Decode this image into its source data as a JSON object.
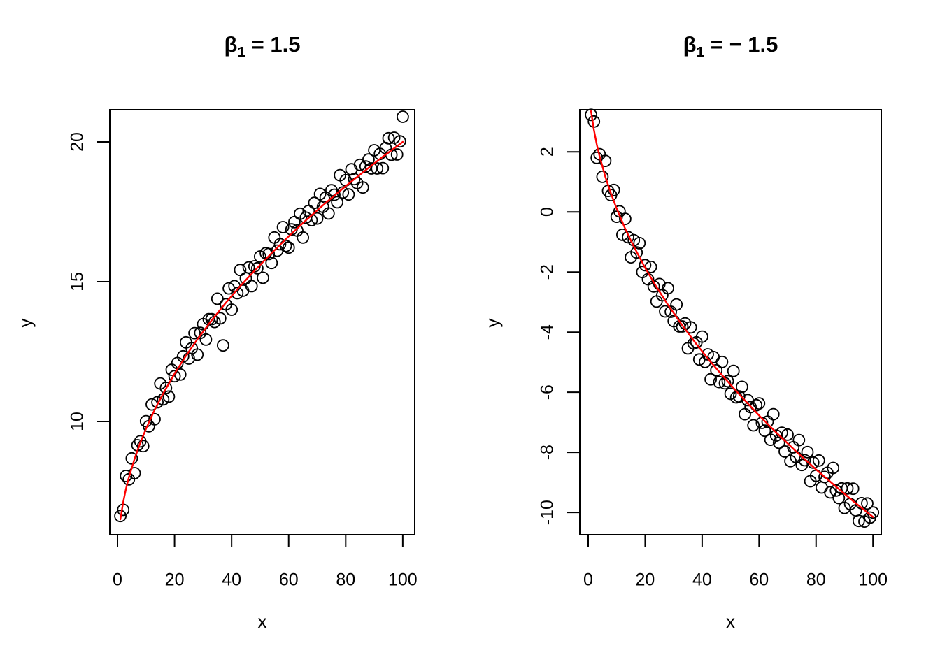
{
  "page": {
    "background": "#ffffff"
  },
  "chart_data": [
    {
      "type": "scatter",
      "title": {
        "symbol": "β",
        "subscript": "1",
        "rest": "= 1.5"
      },
      "xlabel": "x",
      "ylabel": "y",
      "grid": false,
      "legend": "none",
      "xlim": [
        -2.7,
        104.2
      ],
      "ylim": [
        5.95,
        21.15
      ],
      "x_ticks": [
        {
          "v": 0,
          "label": "0"
        },
        {
          "v": 20,
          "label": "20"
        },
        {
          "v": 40,
          "label": "40"
        },
        {
          "v": 60,
          "label": "60"
        },
        {
          "v": 80,
          "label": "80"
        },
        {
          "v": 100,
          "label": "100"
        }
      ],
      "y_ticks": [
        {
          "v": 10,
          "label": "10"
        },
        {
          "v": 15,
          "label": "15"
        },
        {
          "v": 20,
          "label": "20"
        }
      ],
      "point_style": {
        "shape": "open-circle",
        "stroke": "#000000"
      },
      "points": {
        "x": [
          1,
          2,
          3,
          4,
          5,
          6,
          7,
          8,
          9,
          10,
          11,
          12,
          13,
          14,
          15,
          16,
          17,
          18,
          19,
          20,
          21,
          22,
          23,
          24,
          25,
          26,
          27,
          28,
          29,
          30,
          31,
          32,
          33,
          34,
          35,
          36,
          37,
          38,
          39,
          40,
          41,
          42,
          43,
          44,
          45,
          46,
          47,
          48,
          49,
          50,
          51,
          52,
          53,
          54,
          55,
          56,
          57,
          58,
          59,
          60,
          61,
          62,
          63,
          64,
          65,
          66,
          67,
          68,
          69,
          70,
          71,
          72,
          73,
          74,
          75,
          76,
          77,
          78,
          79,
          80,
          81,
          82,
          83,
          84,
          85,
          86,
          87,
          88,
          89,
          90,
          91,
          92,
          93,
          94,
          95,
          96,
          97,
          98,
          99,
          100
        ],
        "y": [
          6.62,
          6.84,
          8.05,
          7.93,
          8.68,
          8.15,
          9.15,
          9.29,
          9.12,
          10.01,
          9.83,
          10.61,
          10.08,
          10.69,
          11.36,
          10.79,
          11.2,
          10.89,
          11.85,
          11.62,
          12.09,
          11.68,
          12.33,
          12.83,
          12.25,
          12.62,
          13.16,
          12.39,
          13.17,
          13.48,
          12.93,
          13.66,
          13.66,
          13.56,
          14.39,
          13.69,
          12.72,
          14.19,
          14.76,
          14.0,
          14.84,
          14.59,
          15.42,
          14.68,
          15.12,
          15.51,
          14.84,
          15.55,
          15.48,
          15.9,
          15.14,
          16.02,
          15.99,
          15.67,
          16.58,
          16.11,
          16.34,
          16.95,
          16.28,
          16.22,
          16.87,
          17.13,
          16.83,
          17.43,
          16.58,
          17.29,
          17.53,
          17.2,
          17.82,
          17.26,
          18.14,
          17.68,
          18.01,
          17.44,
          18.27,
          18.11,
          17.84,
          18.81,
          18.19,
          18.63,
          18.12,
          19.02,
          18.67,
          18.53,
          19.18,
          18.37,
          19.12,
          19.37,
          19.05,
          19.7,
          19.05,
          19.57,
          19.06,
          19.78,
          20.13,
          19.54,
          20.15,
          19.55,
          20.02,
          20.9
        ]
      },
      "fit_line": {
        "color": "#ff0000",
        "points": [
          [
            1,
            6.5
          ],
          [
            2,
            7.12
          ],
          [
            3,
            7.6
          ],
          [
            4,
            8.0
          ],
          [
            6,
            8.67
          ],
          [
            8,
            9.24
          ],
          [
            10,
            9.74
          ],
          [
            13,
            10.41
          ],
          [
            16,
            11.0
          ],
          [
            20,
            11.71
          ],
          [
            24,
            12.35
          ],
          [
            28,
            12.94
          ],
          [
            33,
            13.62
          ],
          [
            38,
            14.25
          ],
          [
            43,
            14.84
          ],
          [
            48,
            15.39
          ],
          [
            54,
            16.02
          ],
          [
            60,
            16.62
          ],
          [
            66,
            17.19
          ],
          [
            73,
            17.82
          ],
          [
            80,
            18.42
          ],
          [
            87,
            18.99
          ],
          [
            93,
            19.47
          ],
          [
            100,
            20.0
          ]
        ]
      }
    },
    {
      "type": "scatter",
      "title": {
        "symbol": "β",
        "subscript": "1",
        "rest": "= − 1.5"
      },
      "xlabel": "x",
      "ylabel": "y",
      "grid": false,
      "legend": "none",
      "xlim": [
        -2.95,
        102.9
      ],
      "ylim": [
        -10.74,
        3.4
      ],
      "x_ticks": [
        {
          "v": 0,
          "label": "0"
        },
        {
          "v": 20,
          "label": "20"
        },
        {
          "v": 40,
          "label": "40"
        },
        {
          "v": 60,
          "label": "60"
        },
        {
          "v": 80,
          "label": "80"
        },
        {
          "v": 100,
          "label": "100"
        }
      ],
      "y_ticks": [
        {
          "v": 2,
          "label": "2"
        },
        {
          "v": 0,
          "label": "0"
        },
        {
          "v": -2,
          "label": "-2"
        },
        {
          "v": -4,
          "label": "-4"
        },
        {
          "v": -6,
          "label": "-6"
        },
        {
          "v": -8,
          "label": "-8"
        },
        {
          "v": -10,
          "label": "-10"
        }
      ],
      "point_style": {
        "shape": "open-circle",
        "stroke": "#000000"
      },
      "points": {
        "x": [
          1,
          2,
          3,
          4,
          5,
          6,
          7,
          8,
          9,
          10,
          11,
          12,
          13,
          14,
          15,
          16,
          17,
          18,
          19,
          20,
          21,
          22,
          23,
          24,
          25,
          26,
          27,
          28,
          29,
          30,
          31,
          32,
          33,
          34,
          35,
          36,
          37,
          38,
          39,
          40,
          41,
          42,
          43,
          44,
          45,
          46,
          47,
          48,
          49,
          50,
          51,
          52,
          53,
          54,
          55,
          56,
          57,
          58,
          59,
          60,
          61,
          62,
          63,
          64,
          65,
          66,
          67,
          68,
          69,
          70,
          71,
          72,
          73,
          74,
          75,
          76,
          77,
          78,
          79,
          80,
          81,
          82,
          83,
          84,
          85,
          86,
          87,
          88,
          89,
          90,
          91,
          92,
          93,
          94,
          95,
          96,
          97,
          98,
          99,
          100
        ],
        "y": [
          3.23,
          3.01,
          1.8,
          1.92,
          1.17,
          1.7,
          0.7,
          0.56,
          0.73,
          -0.16,
          0.02,
          -0.76,
          -0.23,
          -0.84,
          -1.51,
          -0.94,
          -1.35,
          -1.04,
          -2.0,
          -1.77,
          -2.24,
          -1.83,
          -2.48,
          -2.98,
          -2.4,
          -2.77,
          -3.31,
          -2.54,
          -3.32,
          -3.63,
          -3.08,
          -3.81,
          -3.81,
          -3.71,
          -4.54,
          -3.84,
          -4.38,
          -4.34,
          -4.91,
          -4.15,
          -4.99,
          -4.74,
          -5.57,
          -4.83,
          -5.27,
          -5.66,
          -4.99,
          -5.7,
          -5.63,
          -6.05,
          -5.29,
          -6.17,
          -6.14,
          -5.82,
          -6.73,
          -6.26,
          -6.49,
          -7.1,
          -6.43,
          -6.37,
          -7.02,
          -7.28,
          -6.98,
          -7.58,
          -6.73,
          -7.44,
          -7.68,
          -7.35,
          -7.97,
          -7.41,
          -8.29,
          -7.83,
          -8.16,
          -7.59,
          -8.42,
          -8.26,
          -7.99,
          -8.96,
          -8.34,
          -8.78,
          -8.27,
          -9.17,
          -8.82,
          -8.68,
          -9.33,
          -8.52,
          -9.27,
          -9.52,
          -9.2,
          -9.85,
          -9.2,
          -9.72,
          -9.21,
          -9.93,
          -10.28,
          -9.69,
          -10.3,
          -9.7,
          -10.17,
          -10.0
        ]
      },
      "fit_line": {
        "color": "#ff0000",
        "points": [
          [
            1,
            3.35
          ],
          [
            2,
            2.73
          ],
          [
            3,
            2.25
          ],
          [
            4,
            1.85
          ],
          [
            6,
            1.18
          ],
          [
            8,
            0.61
          ],
          [
            10,
            0.11
          ],
          [
            13,
            -0.56
          ],
          [
            16,
            -1.15
          ],
          [
            20,
            -1.86
          ],
          [
            24,
            -2.5
          ],
          [
            28,
            -3.09
          ],
          [
            33,
            -3.77
          ],
          [
            38,
            -4.4
          ],
          [
            43,
            -4.99
          ],
          [
            48,
            -5.54
          ],
          [
            54,
            -6.17
          ],
          [
            60,
            -6.77
          ],
          [
            66,
            -7.34
          ],
          [
            73,
            -7.97
          ],
          [
            80,
            -8.57
          ],
          [
            87,
            -9.14
          ],
          [
            93,
            -9.62
          ],
          [
            100,
            -10.15
          ]
        ]
      }
    }
  ]
}
